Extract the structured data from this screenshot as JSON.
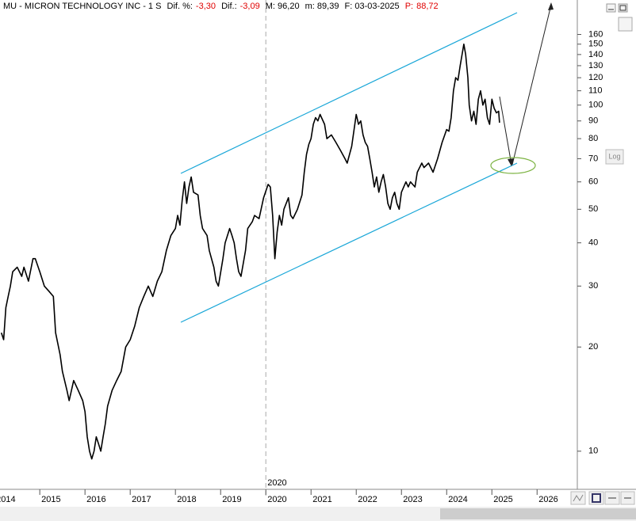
{
  "header": {
    "symbol": "MU - MICRON TECHNOLOGY INC - 1 S",
    "dif_pct_label": "Dif. %:",
    "dif_pct": "-3,30",
    "dif_label": "Dif.:",
    "dif": "-3,09",
    "max": "M: 96,20",
    "min": "m: 89,39",
    "date": "F: 03-03-2025",
    "price_label": "P:",
    "price": "88,72"
  },
  "log_button": "Log",
  "chart_data": {
    "type": "line",
    "log_scale": true,
    "grid": false,
    "xlim": [
      2014.12,
      2026.89
    ],
    "xticks": [
      2014,
      2015,
      2016,
      2017,
      2018,
      2019,
      2020,
      2021,
      2022,
      2023,
      2024,
      2025,
      2026
    ],
    "ylim": [
      7.8,
      196
    ],
    "yticks": [
      10,
      20,
      30,
      40,
      50,
      60,
      70,
      80,
      90,
      100,
      110,
      120,
      130,
      140,
      150,
      160
    ],
    "cursor_x": 2020,
    "series": [
      {
        "name": "MU",
        "color": "#000000",
        "x": [
          2014.15,
          2014.2,
          2014.25,
          2014.3,
          2014.35,
          2014.4,
          2014.5,
          2014.6,
          2014.65,
          2014.75,
          2014.85,
          2014.9,
          2015.0,
          2015.1,
          2015.2,
          2015.3,
          2015.35,
          2015.45,
          2015.5,
          2015.6,
          2015.65,
          2015.75,
          2015.85,
          2015.95,
          2016.0,
          2016.05,
          2016.1,
          2016.15,
          2016.2,
          2016.25,
          2016.3,
          2016.35,
          2016.4,
          2016.45,
          2016.5,
          2016.6,
          2016.7,
          2016.8,
          2016.9,
          2017.0,
          2017.1,
          2017.2,
          2017.3,
          2017.4,
          2017.5,
          2017.6,
          2017.7,
          2017.8,
          2017.9,
          2018.0,
          2018.05,
          2018.1,
          2018.15,
          2018.2,
          2018.25,
          2018.3,
          2018.35,
          2018.4,
          2018.5,
          2018.55,
          2018.6,
          2018.7,
          2018.75,
          2018.85,
          2018.9,
          2018.95,
          2019.05,
          2019.1,
          2019.2,
          2019.25,
          2019.3,
          2019.35,
          2019.4,
          2019.45,
          2019.55,
          2019.6,
          2019.7,
          2019.75,
          2019.85,
          2019.95,
          2020.05,
          2020.1,
          2020.15,
          2020.2,
          2020.25,
          2020.3,
          2020.35,
          2020.4,
          2020.5,
          2020.55,
          2020.6,
          2020.7,
          2020.8,
          2020.85,
          2020.9,
          2020.95,
          2021.0,
          2021.05,
          2021.1,
          2021.15,
          2021.2,
          2021.3,
          2021.35,
          2021.45,
          2021.55,
          2021.65,
          2021.75,
          2021.8,
          2021.9,
          2022.0,
          2022.05,
          2022.1,
          2022.15,
          2022.2,
          2022.25,
          2022.3,
          2022.35,
          2022.4,
          2022.45,
          2022.5,
          2022.55,
          2022.6,
          2022.65,
          2022.7,
          2022.75,
          2022.8,
          2022.85,
          2022.9,
          2022.95,
          2023.0,
          2023.1,
          2023.15,
          2023.2,
          2023.3,
          2023.35,
          2023.45,
          2023.5,
          2023.6,
          2023.7,
          2023.8,
          2023.9,
          2024.0,
          2024.05,
          2024.1,
          2024.15,
          2024.2,
          2024.25,
          2024.3,
          2024.38,
          2024.42,
          2024.47,
          2024.5,
          2024.55,
          2024.6,
          2024.65,
          2024.7,
          2024.75,
          2024.8,
          2024.85,
          2024.9,
          2024.95,
          2025.0,
          2025.05,
          2025.1,
          2025.15,
          2025.17
        ],
        "values": [
          22,
          21,
          26,
          28,
          30,
          33,
          34,
          32,
          34,
          31,
          36,
          36,
          33,
          30,
          29,
          28,
          22,
          19,
          17,
          15,
          14,
          16,
          15,
          14,
          13,
          11,
          10,
          9.5,
          10,
          11,
          10.5,
          10,
          11,
          12,
          13.5,
          15,
          16,
          17,
          20,
          21,
          23,
          26,
          28,
          30,
          28,
          31,
          33,
          38,
          42,
          44,
          48,
          45,
          53,
          60,
          52,
          58,
          62,
          56,
          55,
          48,
          44,
          42,
          38,
          34,
          31,
          30,
          36,
          40,
          44,
          42,
          40,
          36,
          33,
          32,
          38,
          44,
          46,
          48,
          47,
          54,
          59,
          58,
          48,
          36,
          43,
          48,
          45,
          50,
          54,
          48,
          47,
          50,
          55,
          64,
          72,
          77,
          80,
          88,
          92,
          90,
          94,
          88,
          80,
          82,
          78,
          74,
          70,
          68,
          76,
          94,
          88,
          90,
          82,
          78,
          76,
          70,
          64,
          58,
          62,
          56,
          60,
          63,
          58,
          52,
          50,
          54,
          56,
          52,
          50,
          56,
          60,
          58,
          60,
          58,
          64,
          68,
          66,
          68,
          64,
          70,
          78,
          85,
          84,
          92,
          110,
          120,
          118,
          130,
          150,
          140,
          120,
          100,
          90,
          96,
          88,
          104,
          110,
          100,
          104,
          92,
          88,
          104,
          98,
          95,
          96,
          89
        ]
      }
    ]
  }
}
